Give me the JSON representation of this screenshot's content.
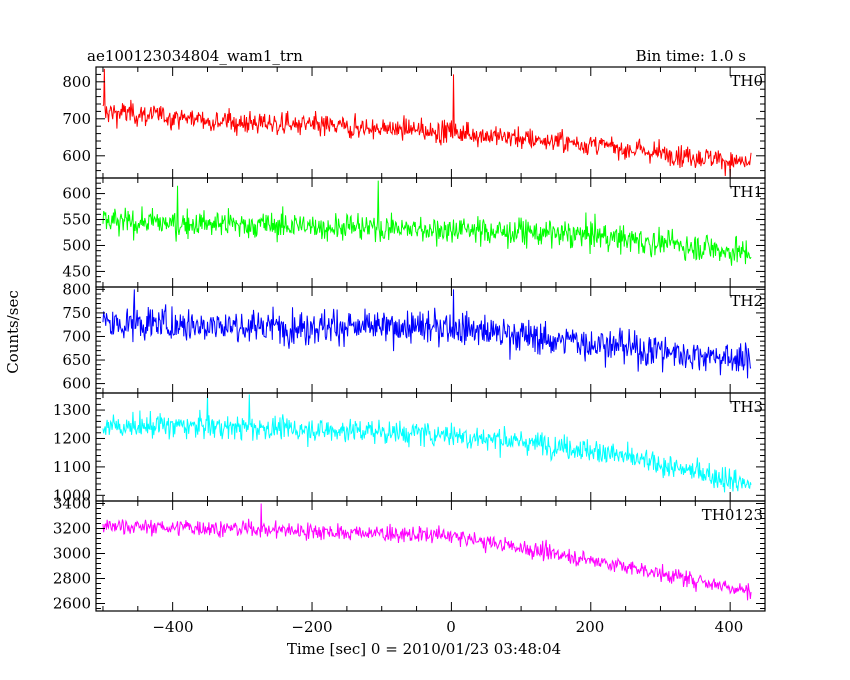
{
  "header": {
    "title": "ae100123034804_wam1_trn",
    "bin_time": "Bin time: 1.0 s"
  },
  "axes": {
    "ylabel": "Counts/sec",
    "xlabel": "Time [sec] 0 = 2010/01/23 03:48:04",
    "x_ticks": [
      "−400",
      "−200",
      "0",
      "200",
      "400"
    ]
  },
  "chart_data": {
    "type": "line",
    "xlim": [
      -510,
      450
    ],
    "x_range": [
      -500,
      430
    ],
    "bin_time_s": 1.0,
    "panels": [
      {
        "name": "TH0",
        "color": "#ff0000",
        "ylim": [
          540,
          840
        ],
        "yticks": [
          600,
          700,
          800
        ],
        "trend": [
          [
            -500,
            720
          ],
          [
            -300,
            690
          ],
          [
            0,
            665
          ],
          [
            200,
            630
          ],
          [
            430,
            580
          ]
        ],
        "noise": 32,
        "peaks": [
          [
            -498,
            835
          ],
          [
            3,
            820
          ]
        ]
      },
      {
        "name": "TH1",
        "color": "#00ff00",
        "ylim": [
          420,
          630
        ],
        "yticks": [
          450,
          500,
          550,
          600
        ],
        "trend": [
          [
            -500,
            545
          ],
          [
            -300,
            540
          ],
          [
            0,
            530
          ],
          [
            200,
            520
          ],
          [
            430,
            485
          ]
        ],
        "noise": 28,
        "peaks": [
          [
            -393,
            615
          ],
          [
            -105,
            625
          ]
        ]
      },
      {
        "name": "TH2",
        "color": "#0000ff",
        "ylim": [
          580,
          805
        ],
        "yticks": [
          600,
          650,
          700,
          750,
          800
        ],
        "trend": [
          [
            -500,
            728
          ],
          [
            -300,
            722
          ],
          [
            0,
            718
          ],
          [
            200,
            685
          ],
          [
            430,
            648
          ]
        ],
        "noise": 38,
        "peaks": [
          [
            -455,
            800
          ],
          [
            3,
            800
          ]
        ]
      },
      {
        "name": "TH3",
        "color": "#00ffff",
        "ylim": [
          980,
          1360
        ],
        "yticks": [
          1000,
          1100,
          1200,
          1300
        ],
        "trend": [
          [
            -500,
            1245
          ],
          [
            -300,
            1240
          ],
          [
            0,
            1215
          ],
          [
            200,
            1160
          ],
          [
            430,
            1040
          ]
        ],
        "noise": 45,
        "peaks": [
          [
            -350,
            1355
          ],
          [
            -290,
            1355
          ]
        ]
      },
      {
        "name": "TH0123",
        "color": "#ff00ff",
        "ylim": [
          2540,
          3420
        ],
        "yticks": [
          2600,
          2800,
          3000,
          3200,
          3400
        ],
        "trend": [
          [
            -500,
            3220
          ],
          [
            -300,
            3200
          ],
          [
            0,
            3140
          ],
          [
            200,
            2950
          ],
          [
            430,
            2700
          ]
        ],
        "noise": 70,
        "peaks": [
          [
            -273,
            3400
          ]
        ]
      }
    ]
  }
}
